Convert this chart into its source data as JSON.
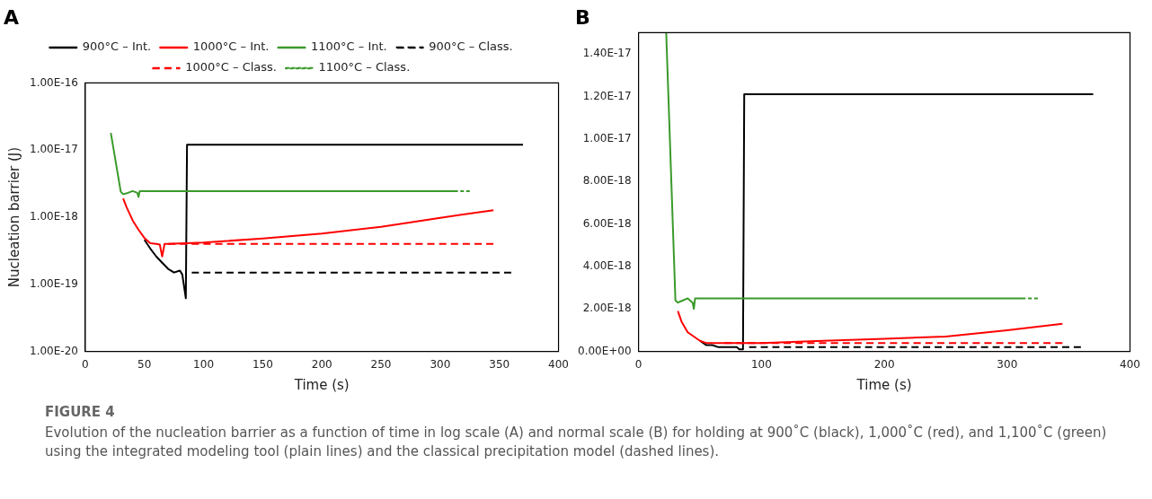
{
  "chart_data": [
    {
      "type": "line",
      "title": "A",
      "xlabel": "Time (s)",
      "ylabel": "Nucleation barrier (J)",
      "log": "y",
      "grid": false,
      "legend": "top",
      "marker": "none",
      "xlim": [
        0,
        400
      ],
      "xticks": [
        0,
        50,
        100,
        150,
        200,
        250,
        300,
        350,
        400
      ],
      "ylim": [
        1e-20,
        1e-16
      ],
      "yticks": [
        {
          "value": 1e-20,
          "label": "1.00E-20"
        },
        {
          "value": 1e-19,
          "label": "1.00E-19"
        },
        {
          "value": 1e-18,
          "label": "1.00E-18"
        },
        {
          "value": 1e-17,
          "label": "1.00E-17"
        },
        {
          "value": 1e-16,
          "label": "1.00E-16"
        }
      ],
      "annotations": [
        "FIGURE 4",
        "Evolution of the nucleation barrier as a function of time in log scale (A) and normal scale (B) for holding at 900˚C (black), 1,000˚C (red), and 1,100˚C (green) using the integrated modeling tool (plain lines) and the classical precipitation model (dashed lines)."
      ],
      "series": [
        {
          "name": "900°C – Int.",
          "color": "#000000",
          "line_style": "solid",
          "x": [
            50,
            55,
            60,
            65,
            70,
            75,
            80,
            82,
            85,
            86,
            370
          ],
          "values": [
            4.6e-19,
            3.4e-19,
            2.6e-19,
            2.1e-19,
            1.7e-19,
            1.5e-19,
            1.6e-19,
            1.4e-19,
            6.2e-20,
            1.2e-17,
            1.2e-17
          ]
        },
        {
          "name": "1000°C – Int.",
          "color": "#ff0000",
          "line_style": "solid",
          "x": [
            32,
            35,
            40,
            45,
            50,
            55,
            60,
            63,
            65,
            67,
            70,
            100,
            150,
            200,
            250,
            300,
            345
          ],
          "values": [
            1.9e-18,
            1.4e-18,
            9e-19,
            6.5e-19,
            4.9e-19,
            4.1e-19,
            4e-19,
            3.9e-19,
            2.6e-19,
            4e-19,
            4e-19,
            4.2e-19,
            4.8e-19,
            5.7e-19,
            7.2e-19,
            9.8e-19,
            1.27e-18
          ]
        },
        {
          "name": "1100°C – Int.",
          "color": "#3a9a2a",
          "line_style": "solid",
          "x": [
            21.6,
            30,
            32,
            36,
            40,
            44,
            45,
            46,
            60,
            150,
            250,
            315
          ],
          "values": [
            1.8e-17,
            2.4e-18,
            2.2e-18,
            2.3e-18,
            2.45e-18,
            2.3e-18,
            2e-18,
            2.45e-18,
            2.45e-18,
            2.45e-18,
            2.45e-18,
            2.45e-18
          ]
        },
        {
          "name": "900°C – Class.",
          "color": "#000000",
          "line_style": "dashed",
          "x": [
            90,
            360
          ],
          "values": [
            1.5e-19,
            1.5e-19
          ]
        },
        {
          "name": "1000°C – Class.",
          "color": "#ff0000",
          "line_style": "dashed",
          "x": [
            70,
            345
          ],
          "values": [
            4e-19,
            4e-19
          ]
        },
        {
          "name": "1100°C – Class.",
          "color": "#3a9a2a",
          "line_style": "dashed",
          "x": [
            317,
            325
          ],
          "values": [
            2.45e-18,
            2.45e-18
          ]
        }
      ]
    },
    {
      "type": "line",
      "title": "B",
      "xlabel": "Time (s)",
      "grid": false,
      "legend": false,
      "marker": "none",
      "xlim": [
        0,
        400
      ],
      "xticks": [
        0,
        100,
        200,
        300,
        400
      ],
      "ylim": [
        0,
        1.5e-17
      ],
      "yticks": [
        {
          "value": 0,
          "label": "0.00E+00"
        },
        {
          "value": 2e-18,
          "label": "2.00E-18"
        },
        {
          "value": 4e-18,
          "label": "4.00E-18"
        },
        {
          "value": 6e-18,
          "label": "6.00E-18"
        },
        {
          "value": 8e-18,
          "label": "8.00E-18"
        },
        {
          "value": 1e-17,
          "label": "1.00E-17"
        },
        {
          "value": 1.2e-17,
          "label": "1.20E-17"
        },
        {
          "value": 1.4e-17,
          "label": "1.40E-17"
        }
      ],
      "series": [
        {
          "color": "#000000",
          "line_style": "solid",
          "x": [
            50,
            55,
            60,
            65,
            70,
            75,
            80,
            82,
            85,
            86,
            370
          ],
          "values": [
            5e-19,
            3e-19,
            3e-19,
            2e-19,
            2e-19,
            2e-19,
            2e-19,
            1e-19,
            1e-19,
            1.21e-17,
            1.21e-17
          ]
        },
        {
          "color": "#ff0000",
          "line_style": "solid",
          "x": [
            32,
            35,
            40,
            45,
            50,
            55,
            60,
            70,
            100,
            150,
            200,
            250,
            300,
            345
          ],
          "values": [
            1.9e-18,
            1.4e-18,
            9e-19,
            7e-19,
            5e-19,
            4e-19,
            4e-19,
            4e-19,
            4e-19,
            5e-19,
            6e-19,
            7e-19,
            1e-18,
            1.3e-18
          ]
        },
        {
          "color": "#3a9a2a",
          "line_style": "solid",
          "x": [
            22.5,
            30,
            32,
            36,
            40,
            44,
            45,
            46,
            60,
            150,
            250,
            315
          ],
          "values": [
            1.5e-17,
            2.4e-18,
            2.3e-18,
            2.4e-18,
            2.5e-18,
            2.3e-18,
            2e-18,
            2.5e-18,
            2.5e-18,
            2.5e-18,
            2.5e-18,
            2.5e-18
          ]
        },
        {
          "color": "#000000",
          "line_style": "dashed",
          "x": [
            90,
            360
          ],
          "values": [
            2e-19,
            2e-19
          ]
        },
        {
          "color": "#ff0000",
          "line_style": "dashed",
          "x": [
            70,
            345
          ],
          "values": [
            4e-19,
            4e-19
          ]
        },
        {
          "color": "#3a9a2a",
          "line_style": "dashed",
          "x": [
            317,
            325
          ],
          "values": [
            2.5e-18,
            2.5e-18
          ]
        }
      ]
    }
  ]
}
